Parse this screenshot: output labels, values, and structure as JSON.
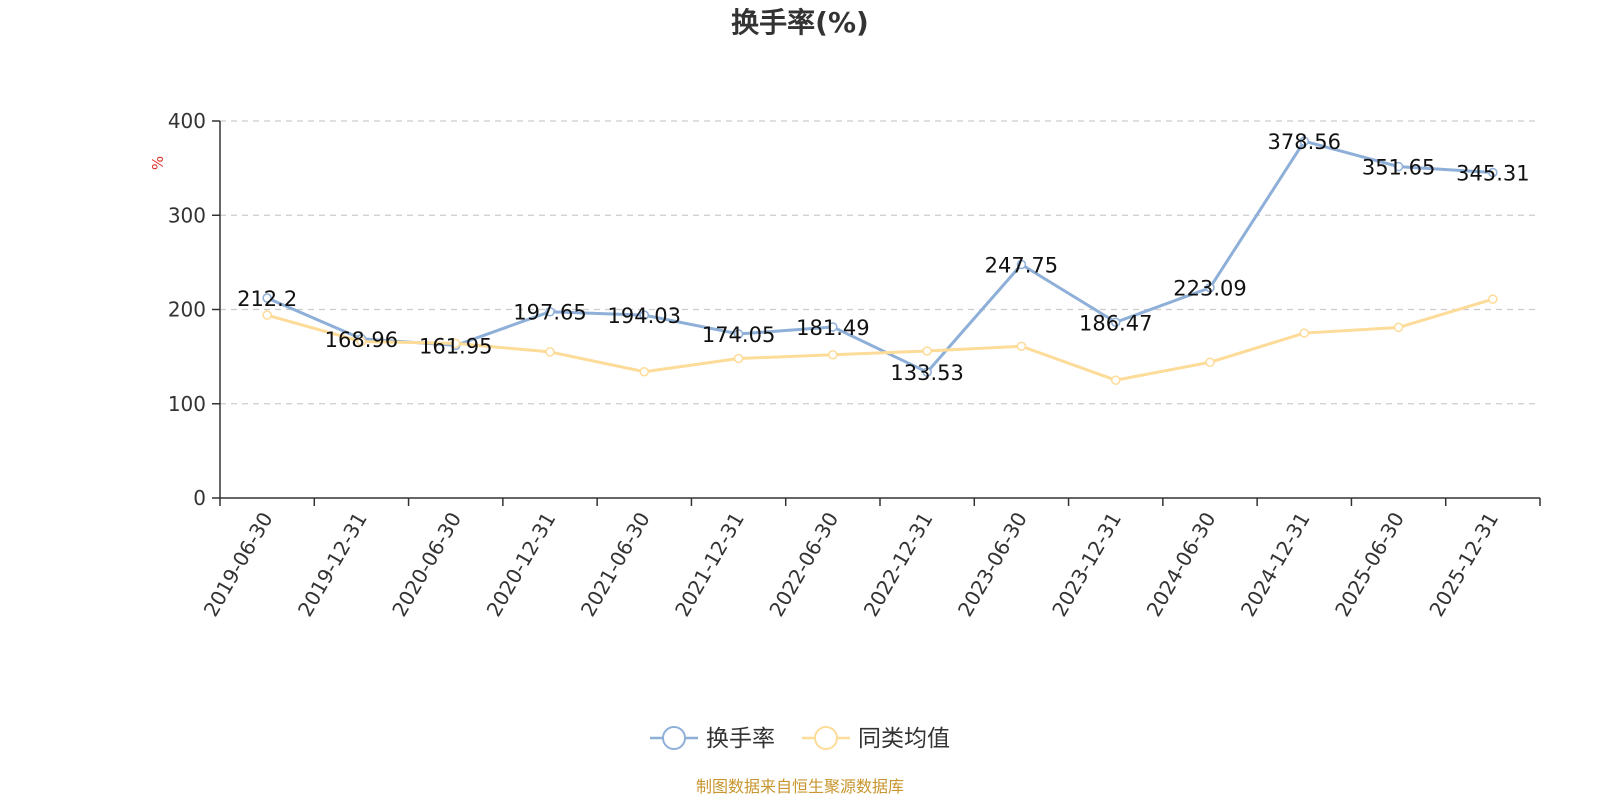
{
  "chart_data": {
    "type": "line",
    "title": "换手率(%)",
    "ylabel": "%",
    "ylim": [
      0,
      400
    ],
    "yticks": [
      0,
      100,
      200,
      300,
      400
    ],
    "grid": true,
    "legend_position": "bottom",
    "categories": [
      "2019-06-30",
      "2019-12-31",
      "2020-06-30",
      "2020-12-31",
      "2021-06-30",
      "2021-12-31",
      "2022-06-30",
      "2022-12-31",
      "2023-06-30",
      "2023-12-31",
      "2024-06-30",
      "2024-12-31",
      "2025-06-30",
      "2025-12-31"
    ],
    "series": [
      {
        "name": "换手率",
        "color": "#8eafd8",
        "values": [
          212.2,
          168.96,
          161.95,
          197.65,
          194.03,
          174.05,
          181.49,
          133.53,
          247.75,
          186.47,
          223.09,
          378.56,
          351.65,
          345.31
        ],
        "labels": [
          "212.2",
          "168.96",
          "161.95",
          "197.65",
          "194.03",
          "174.05",
          "181.49",
          "133.53",
          "247.75",
          "186.47",
          "223.09",
          "378.56",
          "351.65",
          "345.31"
        ]
      },
      {
        "name": "同类均值",
        "color": "#fddb98",
        "values": [
          194,
          166,
          164,
          155,
          134,
          148,
          152,
          156,
          161,
          125,
          144,
          175,
          181,
          211
        ]
      }
    ]
  },
  "source": {
    "text": "制图数据来自恒生聚源数据库",
    "color": "#c8962f"
  },
  "y_unit_color": "#e0342a"
}
